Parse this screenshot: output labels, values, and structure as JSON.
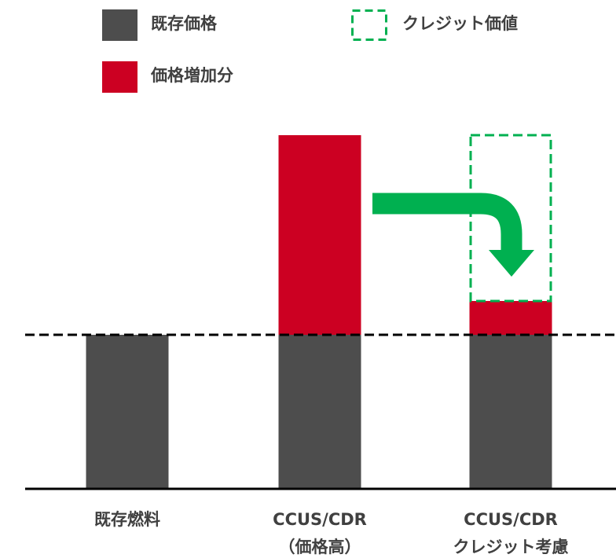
{
  "chart_data": {
    "type": "stacked_bar",
    "categories": [
      [
        "既存燃料"
      ],
      [
        "CCUS/CDR",
        "（価格高）"
      ],
      [
        "CCUS/CDR",
        "クレジット考慮"
      ]
    ],
    "series": [
      {
        "name": "既存価格",
        "color": "#4d4d4d",
        "values": [
          196,
          196,
          196
        ]
      },
      {
        "name": "価格増加分",
        "color": "#cc0022",
        "values": [
          null,
          254,
          43
        ]
      },
      {
        "name": "クレジット価値",
        "color": "#00b050",
        "style": "dashed",
        "values": [
          null,
          null,
          211
        ]
      }
    ]
  }
}
